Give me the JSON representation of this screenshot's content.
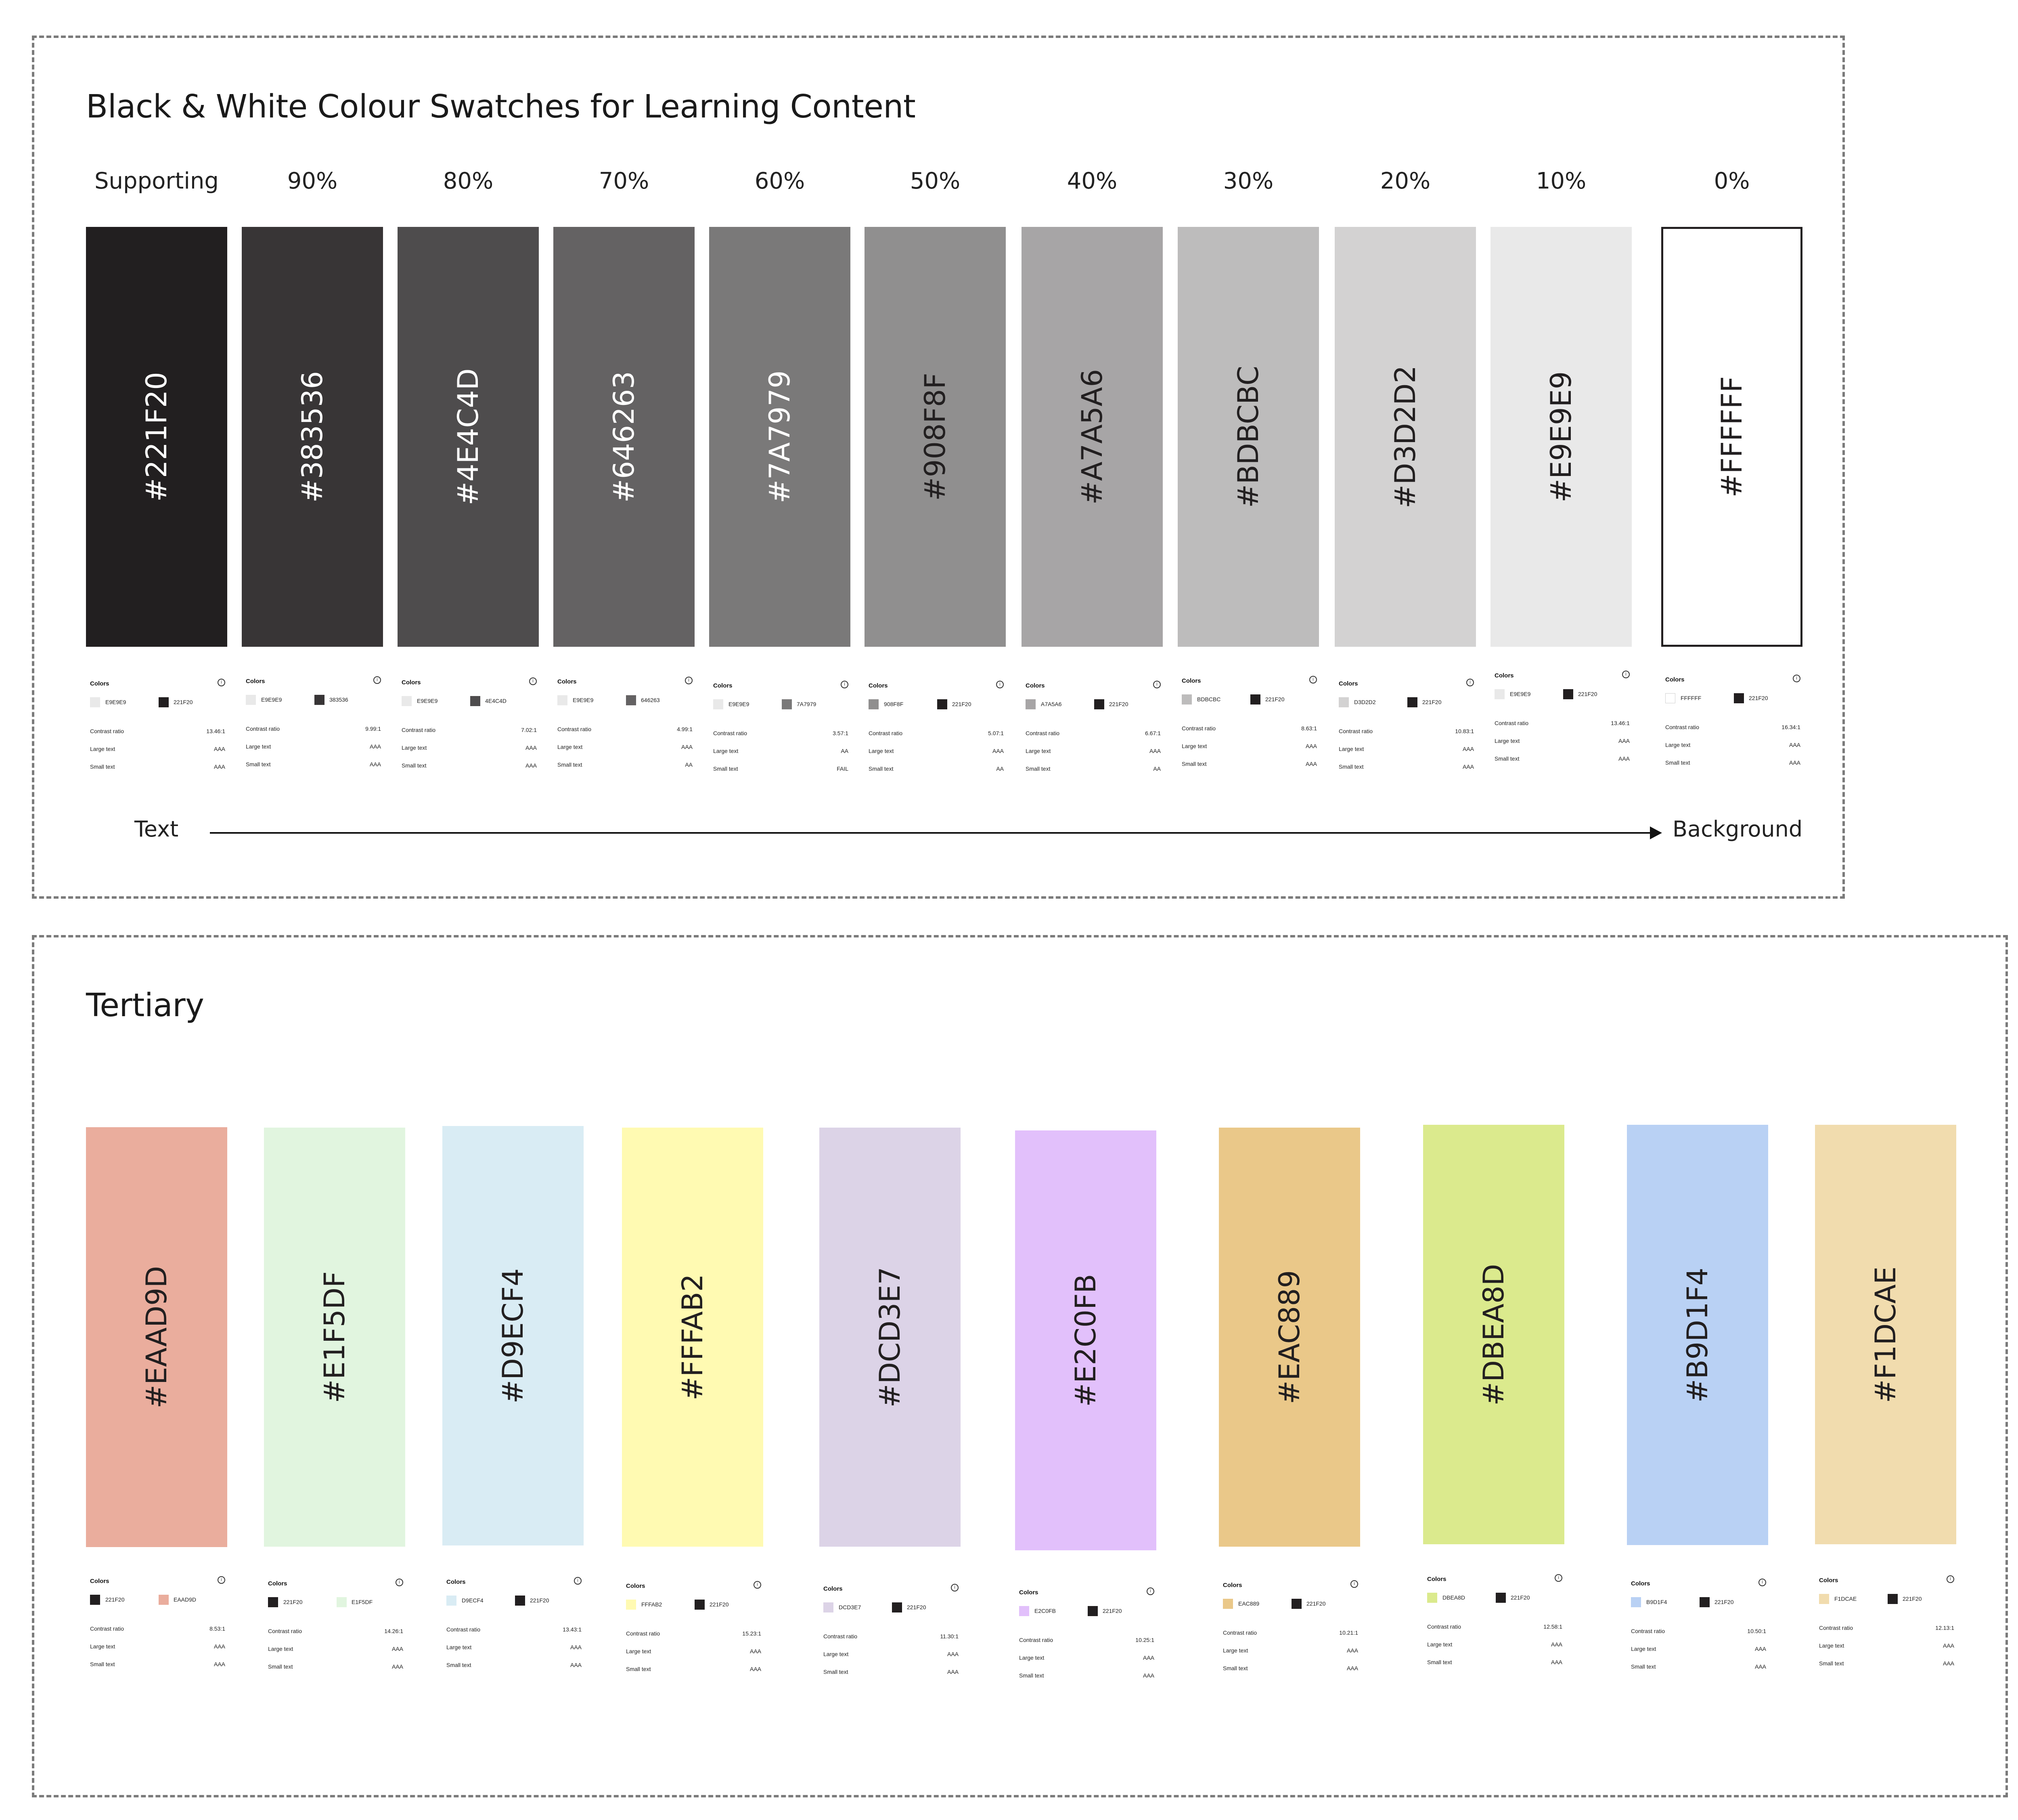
{
  "bw": {
    "title": "Black & White Colour Swatches for Learning Content",
    "headers": [
      "Supporting",
      "90%",
      "80%",
      "70%",
      "60%",
      "50%",
      "40%",
      "30%",
      "20%",
      "10%",
      "0%"
    ],
    "swatches": [
      {
        "hex": "#221F20",
        "color": "#221F20",
        "text_color": "#FFFFFF"
      },
      {
        "hex": "#383536",
        "color": "#383536",
        "text_color": "#FFFFFF"
      },
      {
        "hex": "#4E4C4D",
        "color": "#4E4C4D",
        "text_color": "#FFFFFF"
      },
      {
        "hex": "#646263",
        "color": "#646263",
        "text_color": "#FFFFFF"
      },
      {
        "hex": "#7A7979",
        "color": "#7A7979",
        "text_color": "#FFFFFF"
      },
      {
        "hex": "#908F8F",
        "color": "#908F8F",
        "text_color": "#221F20"
      },
      {
        "hex": "#A7A5A6",
        "color": "#A7A5A6",
        "text_color": "#221F20"
      },
      {
        "hex": "#BDBCBC",
        "color": "#BDBCBC",
        "text_color": "#221F20"
      },
      {
        "hex": "#D3D2D2",
        "color": "#D3D2D2",
        "text_color": "#221F20"
      },
      {
        "hex": "#E9E9E9",
        "color": "#E9E9E9",
        "text_color": "#221F20"
      },
      {
        "hex": "#FFFFFF",
        "color": "#FFFFFF",
        "text_color": "#221F20"
      }
    ],
    "cards": [
      {
        "title": "Colors",
        "c1": "E9E9E9",
        "c1_color": "#E9E9E9",
        "c2": "221F20",
        "c2_color": "#221F20",
        "ratio_label": "Contrast ratio",
        "ratio": "13.46:1",
        "large_label": "Large text",
        "large": "AAA",
        "small_label": "Small text",
        "small": "AAA"
      },
      {
        "title": "Colors",
        "c1": "E9E9E9",
        "c1_color": "#E9E9E9",
        "c2": "383536",
        "c2_color": "#383536",
        "ratio_label": "Contrast ratio",
        "ratio": "9.99:1",
        "large_label": "Large text",
        "large": "AAA",
        "small_label": "Small text",
        "small": "AAA"
      },
      {
        "title": "Colors",
        "c1": "E9E9E9",
        "c1_color": "#E9E9E9",
        "c2": "4E4C4D",
        "c2_color": "#4E4C4D",
        "ratio_label": "Contrast ratio",
        "ratio": "7.02:1",
        "large_label": "Large text",
        "large": "AAA",
        "small_label": "Small text",
        "small": "AAA"
      },
      {
        "title": "Colors",
        "c1": "E9E9E9",
        "c1_color": "#E9E9E9",
        "c2": "646263",
        "c2_color": "#646263",
        "ratio_label": "Contrast ratio",
        "ratio": "4.99:1",
        "large_label": "Large text",
        "large": "AAA",
        "small_label": "Small text",
        "small": "AA"
      },
      {
        "title": "Colors",
        "c1": "E9E9E9",
        "c1_color": "#E9E9E9",
        "c2": "7A7979",
        "c2_color": "#7A7979",
        "ratio_label": "Contrast ratio",
        "ratio": "3.57:1",
        "large_label": "Large text",
        "large": "AA",
        "small_label": "Small text",
        "small": "FAIL"
      },
      {
        "title": "Colors",
        "c1": "908F8F",
        "c1_color": "#908F8F",
        "c2": "221F20",
        "c2_color": "#221F20",
        "ratio_label": "Contrast ratio",
        "ratio": "5.07:1",
        "large_label": "Large text",
        "large": "AAA",
        "small_label": "Small text",
        "small": "AA"
      },
      {
        "title": "Colors",
        "c1": "A7A5A6",
        "c1_color": "#A7A5A6",
        "c2": "221F20",
        "c2_color": "#221F20",
        "ratio_label": "Contrast ratio",
        "ratio": "6.67:1",
        "large_label": "Large text",
        "large": "AAA",
        "small_label": "Small text",
        "small": "AA"
      },
      {
        "title": "Colors",
        "c1": "BDBCBC",
        "c1_color": "#BDBCBC",
        "c2": "221F20",
        "c2_color": "#221F20",
        "ratio_label": "Contrast ratio",
        "ratio": "8.63:1",
        "large_label": "Large text",
        "large": "AAA",
        "small_label": "Small text",
        "small": "AAA"
      },
      {
        "title": "Colors",
        "c1": "D3D2D2",
        "c1_color": "#D3D2D2",
        "c2": "221F20",
        "c2_color": "#221F20",
        "ratio_label": "Contrast ratio",
        "ratio": "10.83:1",
        "large_label": "Large text",
        "large": "AAA",
        "small_label": "Small text",
        "small": "AAA"
      },
      {
        "title": "Colors",
        "c1": "E9E9E9",
        "c1_color": "#E9E9E9",
        "c2": "221F20",
        "c2_color": "#221F20",
        "ratio_label": "Contrast ratio",
        "ratio": "13.46:1",
        "large_label": "Large text",
        "large": "AAA",
        "small_label": "Small text",
        "small": "AAA"
      },
      {
        "title": "Colors",
        "c1": "FFFFFF",
        "c1_color": "#FFFFFF",
        "c2": "221F20",
        "c2_color": "#221F20",
        "ratio_label": "Contrast ratio",
        "ratio": "16.34:1",
        "large_label": "Large text",
        "large": "AAA",
        "small_label": "Small text",
        "small": "AAA"
      }
    ],
    "axis": {
      "left": "Text",
      "right": "Background"
    }
  },
  "tertiary": {
    "title": "Tertiary",
    "swatches": [
      {
        "hex": "#EAAD9D",
        "color": "#EAAD9D",
        "text_color": "#221F20"
      },
      {
        "hex": "#E1F5DF",
        "color": "#E1F5DF",
        "text_color": "#221F20"
      },
      {
        "hex": "#D9ECF4",
        "color": "#D9ECF4",
        "text_color": "#221F20"
      },
      {
        "hex": "#FFFAB2",
        "color": "#FFFAB2",
        "text_color": "#221F20"
      },
      {
        "hex": "#DCD3E7",
        "color": "#DCD3E7",
        "text_color": "#221F20"
      },
      {
        "hex": "#E2C0FB",
        "color": "#E2C0FB",
        "text_color": "#221F20"
      },
      {
        "hex": "#EAC889",
        "color": "#EAC889",
        "text_color": "#221F20"
      },
      {
        "hex": "#DBEA8D",
        "color": "#DBEA8D",
        "text_color": "#221F20"
      },
      {
        "hex": "#B9D1F4",
        "color": "#B9D1F4",
        "text_color": "#221F20"
      },
      {
        "hex": "#F1DCAE",
        "color": "#F1DCAE",
        "text_color": "#221F20"
      }
    ],
    "cards": [
      {
        "title": "Colors",
        "c1": "221F20",
        "c1_color": "#221F20",
        "c2": "EAAD9D",
        "c2_color": "#EAAD9D",
        "ratio_label": "Contrast ratio",
        "ratio": "8.53:1",
        "large_label": "Large text",
        "large": "AAA",
        "small_label": "Small text",
        "small": "AAA"
      },
      {
        "title": "Colors",
        "c1": "221F20",
        "c1_color": "#221F20",
        "c2": "E1F5DF",
        "c2_color": "#E1F5DF",
        "ratio_label": "Contrast ratio",
        "ratio": "14.26:1",
        "large_label": "Large text",
        "large": "AAA",
        "small_label": "Small text",
        "small": "AAA"
      },
      {
        "title": "Colors",
        "c1": "D9ECF4",
        "c1_color": "#D9ECF4",
        "c2": "221F20",
        "c2_color": "#221F20",
        "ratio_label": "Contrast ratio",
        "ratio": "13.43:1",
        "large_label": "Large text",
        "large": "AAA",
        "small_label": "Small text",
        "small": "AAA"
      },
      {
        "title": "Colors",
        "c1": "FFFAB2",
        "c1_color": "#FFFAB2",
        "c2": "221F20",
        "c2_color": "#221F20",
        "ratio_label": "Contrast ratio",
        "ratio": "15.23:1",
        "large_label": "Large text",
        "large": "AAA",
        "small_label": "Small text",
        "small": "AAA"
      },
      {
        "title": "Colors",
        "c1": "DCD3E7",
        "c1_color": "#DCD3E7",
        "c2": "221F20",
        "c2_color": "#221F20",
        "ratio_label": "Contrast ratio",
        "ratio": "11.30:1",
        "large_label": "Large text",
        "large": "AAA",
        "small_label": "Small text",
        "small": "AAA"
      },
      {
        "title": "Colors",
        "c1": "E2C0FB",
        "c1_color": "#E2C0FB",
        "c2": "221F20",
        "c2_color": "#221F20",
        "ratio_label": "Contrast ratio",
        "ratio": "10.25:1",
        "large_label": "Large text",
        "large": "AAA",
        "small_label": "Small text",
        "small": "AAA"
      },
      {
        "title": "Colors",
        "c1": "EAC889",
        "c1_color": "#EAC889",
        "c2": "221F20",
        "c2_color": "#221F20",
        "ratio_label": "Contrast ratio",
        "ratio": "10.21:1",
        "large_label": "Large text",
        "large": "AAA",
        "small_label": "Small text",
        "small": "AAA"
      },
      {
        "title": "Colors",
        "c1": "DBEA8D",
        "c1_color": "#DBEA8D",
        "c2": "221F20",
        "c2_color": "#221F20",
        "ratio_label": "Contrast ratio",
        "ratio": "12.58:1",
        "large_label": "Large text",
        "large": "AAA",
        "small_label": "Small text",
        "small": "AAA"
      },
      {
        "title": "Colors",
        "c1": "B9D1F4",
        "c1_color": "#B9D1F4",
        "c2": "221F20",
        "c2_color": "#221F20",
        "ratio_label": "Contrast ratio",
        "ratio": "10.50:1",
        "large_label": "Large text",
        "large": "AAA",
        "small_label": "Small text",
        "small": "AAA"
      },
      {
        "title": "Colors",
        "c1": "F1DCAE",
        "c1_color": "#F1DCAE",
        "c2": "221F20",
        "c2_color": "#221F20",
        "ratio_label": "Contrast ratio",
        "ratio": "12.13:1",
        "large_label": "Large text",
        "large": "AAA",
        "small_label": "Small text",
        "small": "AAA"
      }
    ]
  },
  "icons": {
    "info": "info-icon"
  }
}
